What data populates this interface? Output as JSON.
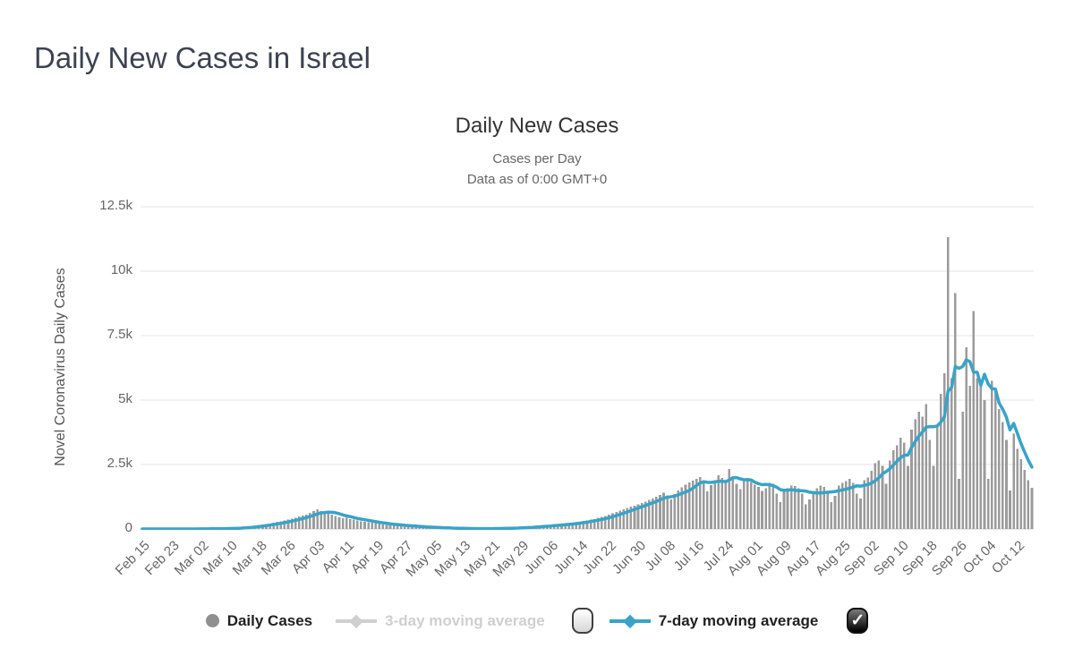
{
  "page": {
    "title": "Daily New Cases in Israel"
  },
  "chart": {
    "title": "Daily New Cases",
    "subtitle1": "Cases per Day",
    "subtitle2": "Data as of 0:00 GMT+0",
    "y_axis_title": "Novel Coronavirus Daily Cases"
  },
  "legend": {
    "daily_cases": "Daily Cases",
    "avg3": "3-day moving average",
    "avg7": "7-day moving average",
    "avg7_checked": true,
    "avg3_checked": false
  },
  "colors": {
    "bar": "#9b9b9b",
    "line": "#39a3c8",
    "grid": "#e6e6e6",
    "axis": "#c9ced4",
    "tick_text": "#666666",
    "disabled_legend": "#cfcfcf"
  },
  "chart_data": {
    "type": "bar",
    "title": "Daily New Cases",
    "xlabel": "",
    "ylabel": "Novel Coronavirus Daily Cases",
    "ylim": [
      0,
      12500
    ],
    "y_tick_values": [
      0,
      2500,
      5000,
      7500,
      10000,
      12500
    ],
    "y_tick_labels": [
      "0",
      "2.5k",
      "5k",
      "7.5k",
      "10k",
      "12.5k"
    ],
    "x_start_date": "Feb 15",
    "x_tick_every": 8,
    "x_tick_labels": [
      "Feb 15",
      "Feb 23",
      "Mar 02",
      "Mar 10",
      "Mar 18",
      "Mar 26",
      "Apr 03",
      "Apr 11",
      "Apr 19",
      "Apr 27",
      "May 05",
      "May 13",
      "May 21",
      "May 29",
      "Jun 06",
      "Jun 14",
      "Jun 22",
      "Jun 30",
      "Jul 08",
      "Jul 16",
      "Jul 24",
      "Aug 01",
      "Aug 09",
      "Aug 17",
      "Aug 25",
      "Sep 02",
      "Sep 10",
      "Sep 18",
      "Sep 26",
      "Oct 04",
      "Oct 12"
    ],
    "grid": true,
    "legend_position": "bottom",
    "series": [
      {
        "name": "Daily Cases",
        "type": "bar",
        "color": "#9b9b9b",
        "values": [
          0,
          0,
          0,
          0,
          0,
          0,
          1,
          1,
          0,
          0,
          0,
          1,
          2,
          3,
          2,
          4,
          5,
          6,
          8,
          10,
          12,
          15,
          18,
          22,
          28,
          35,
          45,
          60,
          75,
          90,
          110,
          130,
          150,
          170,
          190,
          215,
          240,
          270,
          300,
          330,
          360,
          400,
          440,
          480,
          520,
          560,
          620,
          700,
          765,
          700,
          580,
          610,
          550,
          500,
          460,
          410,
          430,
          390,
          360,
          330,
          300,
          280,
          260,
          240,
          220,
          200,
          180,
          165,
          150,
          140,
          130,
          120,
          110,
          100,
          90,
          80,
          70,
          62,
          55,
          50,
          45,
          40,
          35,
          30,
          26,
          22,
          19,
          17,
          15,
          13,
          12,
          11,
          12,
          14,
          15,
          17,
          19,
          22,
          26,
          30,
          35,
          40,
          46,
          52,
          60,
          70,
          80,
          92,
          104,
          116,
          128,
          140,
          152,
          164,
          176,
          188,
          200,
          220,
          240,
          262,
          286,
          310,
          335,
          360,
          390,
          430,
          470,
          510,
          560,
          610,
          660,
          710,
          760,
          810,
          860,
          910,
          960,
          1010,
          1060,
          1120,
          1180,
          1250,
          1320,
          1400,
          1300,
          1150,
          1350,
          1500,
          1620,
          1720,
          1800,
          1880,
          1950,
          2020,
          1850,
          1450,
          1700,
          1900,
          2080,
          1980,
          1880,
          2320,
          2050,
          1750,
          1550,
          1850,
          1980,
          1820,
          1720,
          1640,
          1480,
          1580,
          1780,
          1760,
          1380,
          1050,
          1450,
          1580,
          1680,
          1660,
          1580,
          1380,
          950,
          1150,
          1480,
          1580,
          1680,
          1640,
          1480,
          1050,
          1280,
          1680,
          1780,
          1860,
          1950,
          1780,
          1380,
          1180,
          1900,
          2000,
          2250,
          2550,
          2650,
          2450,
          1750,
          2650,
          3050,
          3250,
          3550,
          3350,
          2450,
          3850,
          4250,
          4550,
          4350,
          4850,
          3450,
          2450,
          4050,
          5250,
          6050,
          11316,
          5850,
          9150,
          1950,
          4550,
          7050,
          5550,
          8450,
          5850,
          5550,
          5000,
          1950,
          5750,
          5450,
          4650,
          4150,
          3450,
          1500,
          3700,
          3100,
          2700,
          2300,
          1900,
          1600
        ]
      },
      {
        "name": "7-day moving average",
        "type": "line",
        "color": "#39a3c8",
        "derived": "7-day trailing moving average of Daily Cases"
      },
      {
        "name": "3-day moving average",
        "type": "line",
        "color": "#cfcfcf",
        "hidden": true
      }
    ]
  }
}
